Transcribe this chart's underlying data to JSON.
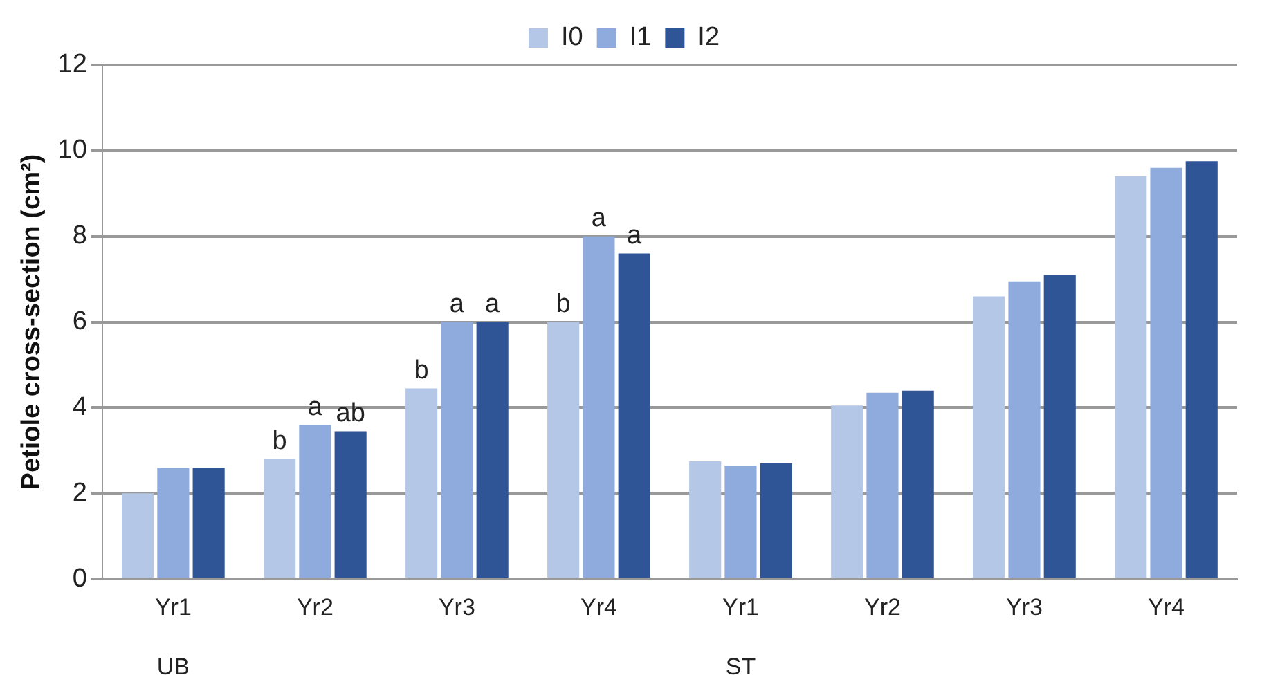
{
  "chart_data": {
    "type": "bar",
    "ylabel": "Petiole cross-section (cm²)",
    "categories": [
      "Yr1",
      "Yr2",
      "Yr3",
      "Yr4",
      "Yr1",
      "Yr2",
      "Yr3",
      "Yr4"
    ],
    "series": [
      {
        "name": "I0",
        "color": "#b4c7e7",
        "values": [
          2.0,
          2.8,
          4.45,
          6.0,
          2.75,
          4.05,
          6.6,
          9.4
        ],
        "value_labels": [
          null,
          "b",
          "b",
          "b",
          null,
          null,
          null,
          null
        ]
      },
      {
        "name": "I1",
        "color": "#8faadc",
        "values": [
          2.6,
          3.6,
          6.0,
          8.0,
          2.65,
          4.35,
          6.95,
          9.6
        ],
        "value_labels": [
          null,
          "a",
          "a",
          "a",
          null,
          null,
          null,
          null
        ]
      },
      {
        "name": "I2",
        "color": "#2f5597",
        "values": [
          2.6,
          3.45,
          6.0,
          7.6,
          2.7,
          4.4,
          7.1,
          9.75
        ],
        "value_labels": [
          null,
          "ab",
          "a",
          "a",
          null,
          null,
          null,
          null
        ]
      }
    ],
    "annotations": [
      "UB",
      "ST"
    ],
    "ylim": [
      0,
      12
    ],
    "yticks": [
      0,
      2,
      4,
      6,
      8,
      10,
      12
    ],
    "grid": "y",
    "legend": "top"
  }
}
